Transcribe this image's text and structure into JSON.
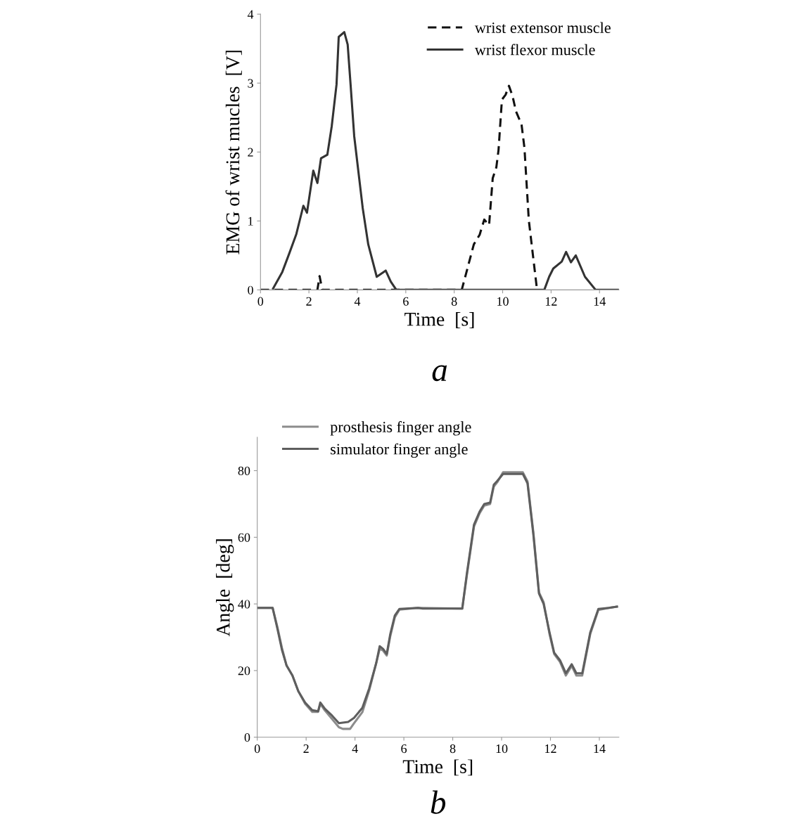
{
  "chart_data": [
    {
      "type": "line",
      "xlabel": "Time  [s]",
      "ylabel": "EMG of wrist mucles  [V]",
      "annotations": [
        "a"
      ],
      "legend": "top right",
      "xlim": [
        0,
        14.8
      ],
      "ylim": [
        0,
        4
      ],
      "xticks": [
        0,
        2,
        4,
        6,
        8,
        10,
        12,
        14
      ],
      "yticks": [
        0,
        1,
        2,
        3,
        4
      ],
      "series": [
        {
          "name": "wrist extensor muscle",
          "color": "#111111",
          "line_style": "dashed",
          "x": [
            0,
            2.35,
            2.44,
            2.55,
            8.31,
            8.81,
            9.05,
            9.24,
            9.44,
            9.59,
            9.74,
            9.83,
            9.97,
            10.12,
            10.26,
            10.41,
            10.55,
            10.78,
            10.9,
            11.08,
            11.42
          ],
          "values": [
            0,
            0,
            0.2,
            0,
            0,
            0.66,
            0.8,
            1.02,
            0.94,
            1.62,
            1.78,
            2.03,
            2.76,
            2.83,
            2.96,
            2.81,
            2.59,
            2.4,
            2.06,
            1.01,
            0
          ]
        },
        {
          "name": "wrist flexor muscle",
          "color": "#333333",
          "line_style": "solid",
          "x": [
            0.52,
            0.9,
            1.19,
            1.48,
            1.77,
            1.92,
            2.18,
            2.35,
            2.5,
            2.76,
            2.94,
            3.14,
            3.23,
            3.46,
            3.6,
            3.72,
            3.87,
            4.22,
            4.45,
            4.8,
            5.17,
            5.38,
            5.61,
            11.72,
            11.92,
            12.09,
            12.44,
            12.62,
            12.82,
            13.02,
            13.4,
            13.84,
            14.8
          ],
          "values": [
            0.02,
            0.26,
            0.53,
            0.81,
            1.22,
            1.12,
            1.73,
            1.55,
            1.91,
            1.96,
            2.37,
            2.98,
            3.67,
            3.74,
            3.56,
            2.98,
            2.23,
            1.19,
            0.66,
            0.19,
            0.28,
            0.12,
            0,
            0,
            0.19,
            0.31,
            0.41,
            0.55,
            0.4,
            0.5,
            0.19,
            0,
            0
          ]
        }
      ]
    },
    {
      "type": "line",
      "xlabel": "Time  [s]",
      "ylabel": "Angle  [deg]",
      "annotations": [
        "b"
      ],
      "legend": "top left",
      "xlim": [
        0,
        14.8
      ],
      "ylim": [
        0,
        90
      ],
      "xticks": [
        0,
        2,
        4,
        6,
        8,
        10,
        12,
        14
      ],
      "yticks": [
        0,
        20,
        40,
        60,
        80
      ],
      "series": [
        {
          "name": "prosthesis finger angle",
          "color": "#8c8c8c",
          "line_style": "solid",
          "x": [
            0,
            0.63,
            0.82,
            1.01,
            1.2,
            1.44,
            1.68,
            1.96,
            2.25,
            2.49,
            2.58,
            2.77,
            3.06,
            3.34,
            3.5,
            3.8,
            3.96,
            4.3,
            4.58,
            4.87,
            5.01,
            5.15,
            5.3,
            5.44,
            5.63,
            5.82,
            6.58,
            8.39,
            8.58,
            8.87,
            9.1,
            9.29,
            9.53,
            9.68,
            9.82,
            10.06,
            10.87,
            11.06,
            11.3,
            11.53,
            11.72,
            11.96,
            12.15,
            12.39,
            12.63,
            12.87,
            13.06,
            13.3,
            13.63,
            13.96,
            14.39,
            14.72
          ],
          "values": [
            38.8,
            38.8,
            33.2,
            26.8,
            21.5,
            18.5,
            13.8,
            10.0,
            7.6,
            7.6,
            10.0,
            8.0,
            5.5,
            3.0,
            2.5,
            2.5,
            4.2,
            7.5,
            14.0,
            22.3,
            26.5,
            26.0,
            24.5,
            30.2,
            36.0,
            38.3,
            38.8,
            38.6,
            48.6,
            63.2,
            67.2,
            69.5,
            70.0,
            75.2,
            76.5,
            79.5,
            79.5,
            76.8,
            61.5,
            43.5,
            40.5,
            31.0,
            25.0,
            22.6,
            18.5,
            21.4,
            18.5,
            18.5,
            31.0,
            38.2,
            38.8,
            39.2
          ]
        },
        {
          "name": "simulator finger angle",
          "color": "#5e5e5e",
          "line_style": "solid",
          "x": [
            0,
            0.63,
            0.82,
            1.01,
            1.2,
            1.44,
            1.68,
            1.96,
            2.25,
            2.49,
            2.58,
            2.77,
            3.06,
            3.34,
            3.72,
            3.96,
            4.3,
            4.58,
            4.87,
            5.01,
            5.15,
            5.3,
            5.44,
            5.63,
            5.82,
            6.58,
            6.77,
            8.39,
            8.58,
            8.87,
            9.1,
            9.29,
            9.53,
            9.68,
            9.82,
            10.06,
            10.87,
            11.06,
            11.3,
            11.53,
            11.72,
            11.96,
            12.15,
            12.39,
            12.63,
            12.87,
            13.06,
            13.3,
            13.63,
            13.96,
            14.39,
            14.72
          ],
          "values": [
            38.8,
            38.8,
            32.7,
            26.2,
            21.5,
            18.5,
            13.8,
            10.4,
            8.1,
            7.8,
            10.4,
            8.5,
            6.5,
            4.2,
            4.6,
            5.8,
            8.8,
            14.6,
            22.3,
            27.3,
            26.5,
            25.0,
            30.8,
            36.5,
            38.5,
            38.8,
            38.6,
            38.6,
            49.2,
            63.8,
            67.7,
            70.0,
            70.4,
            75.8,
            76.9,
            79.0,
            79.0,
            76.2,
            60.8,
            43.1,
            40.0,
            31.5,
            25.4,
            23.1,
            19.2,
            21.9,
            19.2,
            19.2,
            31.5,
            38.5,
            38.8,
            39.2
          ]
        }
      ]
    }
  ]
}
